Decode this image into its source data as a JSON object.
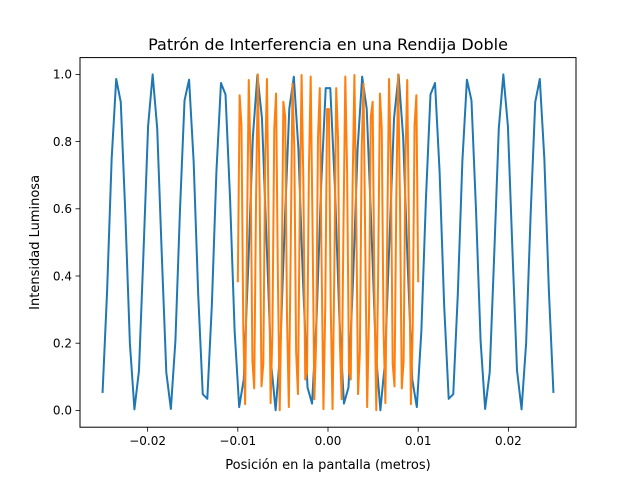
{
  "chart_data": {
    "type": "line",
    "title": "Patrón de Interferencia en una Rendija Doble",
    "xlabel": "Posición en la pantalla (metros)",
    "ylabel": "Intensidad Luminosa",
    "xlim": [
      -0.0275,
      0.0275
    ],
    "ylim": [
      -0.05,
      1.05
    ],
    "x_ticks": [
      {
        "value": -0.02,
        "label": "−0.02"
      },
      {
        "value": -0.01,
        "label": "−0.01"
      },
      {
        "value": 0.0,
        "label": "0.00"
      },
      {
        "value": 0.01,
        "label": "0.01"
      },
      {
        "value": 0.02,
        "label": "0.02"
      }
    ],
    "y_ticks": [
      {
        "value": 0.0,
        "label": "0.0"
      },
      {
        "value": 0.2,
        "label": "0.2"
      },
      {
        "value": 0.4,
        "label": "0.4"
      },
      {
        "value": 0.6,
        "label": "0.6"
      },
      {
        "value": 0.8,
        "label": "0.8"
      },
      {
        "value": 1.0,
        "label": "1.0"
      }
    ],
    "grid": false,
    "legend": "none",
    "series": [
      {
        "color": "#1f77b4",
        "x_range": [
          -0.025,
          0.025
        ],
        "n_points": 100,
        "profile": "cos^2",
        "fringe_period": 0.00389
      },
      {
        "color": "#ff7f0e",
        "x_range": [
          -0.01,
          0.01
        ],
        "n_points": 100,
        "profile": "cos^2",
        "fringe_period": 0.000972
      }
    ]
  }
}
